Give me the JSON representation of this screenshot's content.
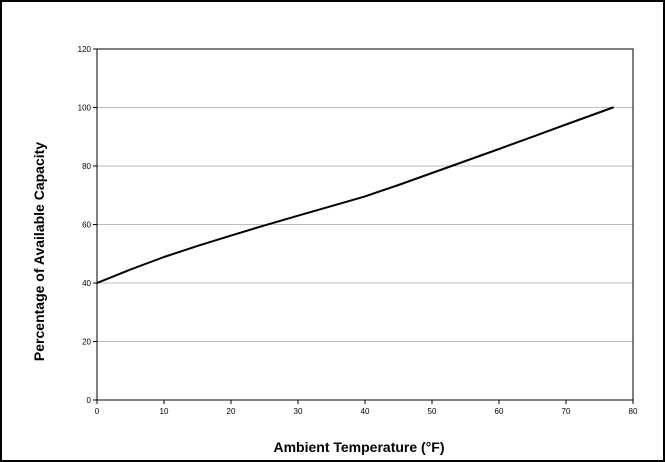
{
  "chart_data": {
    "type": "line",
    "title": "",
    "xlabel": "Ambient Temperature (°F)",
    "ylabel": "Percentage of Available Capacity",
    "xlim": [
      0,
      80
    ],
    "ylim": [
      0,
      120
    ],
    "x_ticks": [
      0,
      10,
      20,
      30,
      40,
      50,
      60,
      70,
      80
    ],
    "y_ticks": [
      0,
      20,
      40,
      60,
      80,
      100,
      120
    ],
    "grid": "horizontal",
    "legend": "none",
    "line_color": "#000000",
    "series": [
      {
        "x": [
          0,
          5,
          10,
          15,
          20,
          25,
          30,
          35,
          40,
          45,
          50,
          55,
          60,
          65,
          70,
          77
        ],
        "values": [
          40,
          44.6,
          48.9,
          52.7,
          56.2,
          59.7,
          63,
          66.3,
          69.6,
          73.5,
          77.6,
          81.7,
          85.8,
          90,
          94.2,
          100
        ]
      }
    ]
  }
}
